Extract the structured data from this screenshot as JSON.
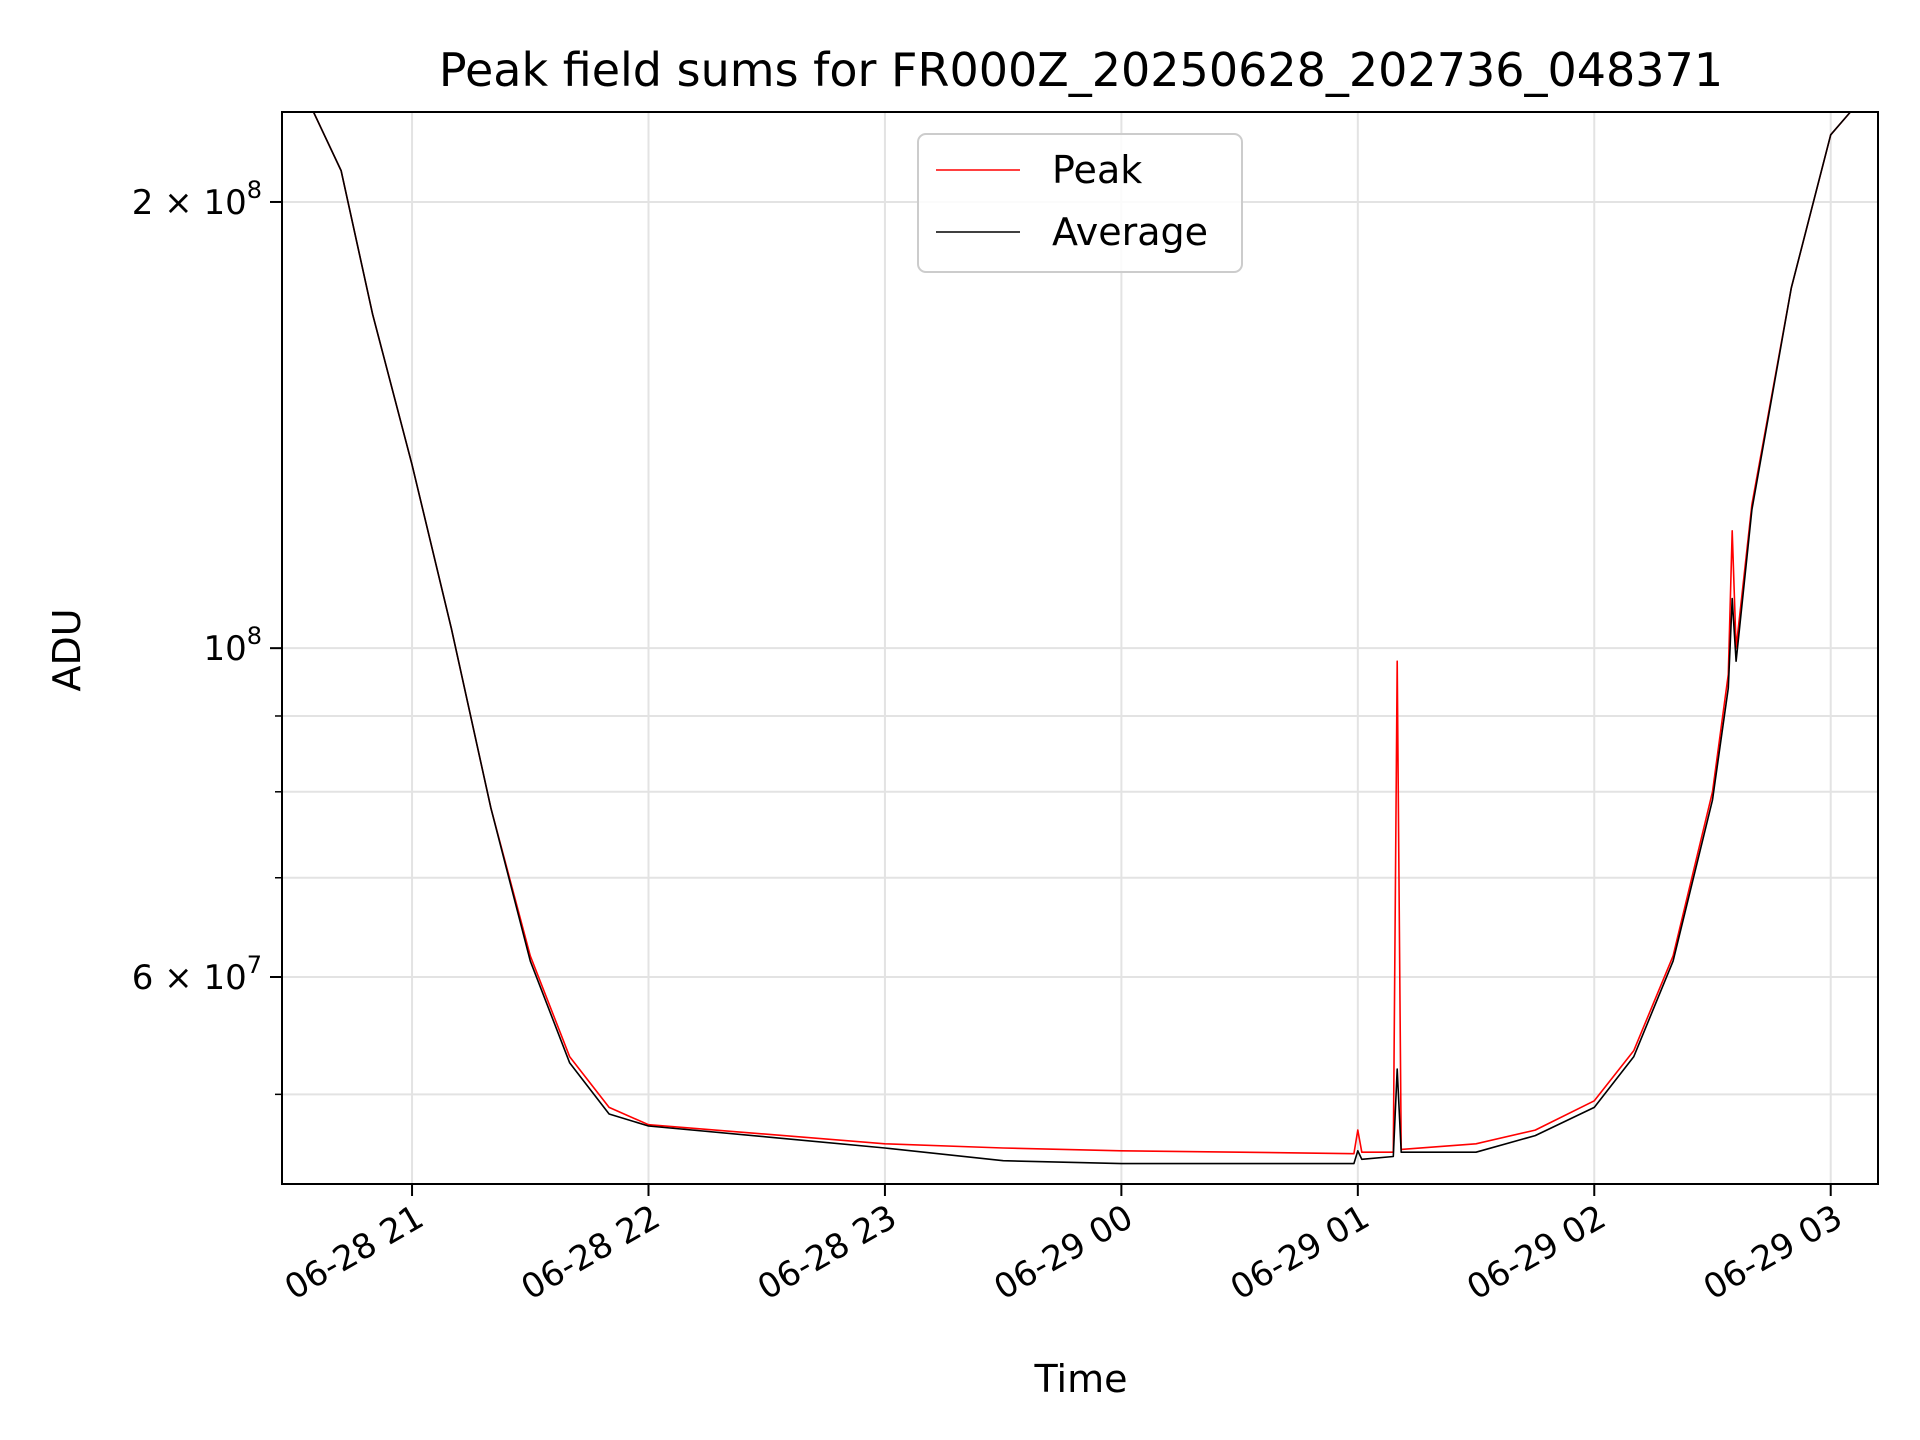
{
  "chart_data": {
    "type": "line",
    "title": "Peak field sums for FR000Z_20250628_202736_048371",
    "xlabel": "Time",
    "ylabel": "ADU",
    "yscale": "log",
    "ylim": [
      43500000,
      230000000
    ],
    "xlim": [
      "2025-06-28 20:27",
      "2025-06-29 03:12"
    ],
    "grid": true,
    "legend_position": "upper center",
    "x_ticks": [
      "06-28 21",
      "06-28 22",
      "06-28 23",
      "06-29 00",
      "06-29 01",
      "06-29 02",
      "06-29 03"
    ],
    "y_major_ticks": [
      {
        "value": 60000000,
        "label_base": "6 × 10",
        "label_exp": "7"
      },
      {
        "value": 100000000,
        "label_base": "10",
        "label_exp": "8"
      },
      {
        "value": 200000000,
        "label_base": "2 × 10",
        "label_exp": "8"
      }
    ],
    "y_minor_ticks": [
      50000000,
      70000000,
      80000000,
      90000000
    ],
    "series": [
      {
        "name": "Peak",
        "color": "#ff0000",
        "points": [
          [
            "2025-06-28 20:27",
            230000000
          ],
          [
            "2025-06-28 20:35",
            230000000
          ],
          [
            "2025-06-28 20:42",
            210000000
          ],
          [
            "2025-06-28 20:50",
            168000000
          ],
          [
            "2025-06-28 21:00",
            133000000
          ],
          [
            "2025-06-28 21:10",
            103000000
          ],
          [
            "2025-06-28 21:20",
            78000000
          ],
          [
            "2025-06-28 21:30",
            62000000
          ],
          [
            "2025-06-28 21:40",
            53000000
          ],
          [
            "2025-06-28 21:50",
            49000000
          ],
          [
            "2025-06-28 22:00",
            47700000
          ],
          [
            "2025-06-28 22:30",
            47000000
          ],
          [
            "2025-06-28 23:00",
            46300000
          ],
          [
            "2025-06-28 23:30",
            46000000
          ],
          [
            "2025-06-29 00:00",
            45800000
          ],
          [
            "2025-06-29 00:30",
            45700000
          ],
          [
            "2025-06-29 00:59",
            45600000
          ],
          [
            "2025-06-29 01:00",
            47300000
          ],
          [
            "2025-06-29 01:01",
            45700000
          ],
          [
            "2025-06-29 01:09",
            45700000
          ],
          [
            "2025-06-29 01:10",
            98000000
          ],
          [
            "2025-06-29 01:11",
            45900000
          ],
          [
            "2025-06-29 01:30",
            46300000
          ],
          [
            "2025-06-29 01:45",
            47300000
          ],
          [
            "2025-06-29 02:00",
            49500000
          ],
          [
            "2025-06-29 02:10",
            53500000
          ],
          [
            "2025-06-29 02:20",
            62000000
          ],
          [
            "2025-06-29 02:30",
            80000000
          ],
          [
            "2025-06-29 02:34",
            96000000
          ],
          [
            "2025-06-29 02:35",
            120000000
          ],
          [
            "2025-06-29 02:36",
            100000000
          ],
          [
            "2025-06-29 02:40",
            125000000
          ],
          [
            "2025-06-29 02:50",
            175000000
          ],
          [
            "2025-06-29 03:00",
            222000000
          ],
          [
            "2025-06-29 03:05",
            230000000
          ],
          [
            "2025-06-29 03:12",
            230000000
          ]
        ]
      },
      {
        "name": "Average",
        "color": "#000000",
        "points": [
          [
            "2025-06-28 20:27",
            230000000
          ],
          [
            "2025-06-28 20:35",
            230000000
          ],
          [
            "2025-06-28 20:42",
            210000000
          ],
          [
            "2025-06-28 20:50",
            168000000
          ],
          [
            "2025-06-28 21:00",
            133000000
          ],
          [
            "2025-06-28 21:10",
            103000000
          ],
          [
            "2025-06-28 21:20",
            78000000
          ],
          [
            "2025-06-28 21:30",
            61500000
          ],
          [
            "2025-06-28 21:40",
            52500000
          ],
          [
            "2025-06-28 21:50",
            48500000
          ],
          [
            "2025-06-28 22:00",
            47600000
          ],
          [
            "2025-06-28 22:30",
            46800000
          ],
          [
            "2025-06-28 23:00",
            46000000
          ],
          [
            "2025-06-28 23:30",
            45100000
          ],
          [
            "2025-06-29 00:00",
            44900000
          ],
          [
            "2025-06-29 00:30",
            44900000
          ],
          [
            "2025-06-29 00:59",
            44900000
          ],
          [
            "2025-06-29 01:00",
            45800000
          ],
          [
            "2025-06-29 01:01",
            45200000
          ],
          [
            "2025-06-29 01:09",
            45400000
          ],
          [
            "2025-06-29 01:10",
            52000000
          ],
          [
            "2025-06-29 01:11",
            45700000
          ],
          [
            "2025-06-29 01:30",
            45700000
          ],
          [
            "2025-06-29 01:45",
            46900000
          ],
          [
            "2025-06-29 02:00",
            49000000
          ],
          [
            "2025-06-29 02:10",
            53000000
          ],
          [
            "2025-06-29 02:20",
            61500000
          ],
          [
            "2025-06-29 02:30",
            79000000
          ],
          [
            "2025-06-29 02:34",
            94000000
          ],
          [
            "2025-06-29 02:35",
            108000000
          ],
          [
            "2025-06-29 02:36",
            98000000
          ],
          [
            "2025-06-29 02:40",
            124000000
          ],
          [
            "2025-06-29 02:50",
            175000000
          ],
          [
            "2025-06-29 03:00",
            222000000
          ],
          [
            "2025-06-29 03:05",
            230000000
          ],
          [
            "2025-06-29 03:12",
            230000000
          ]
        ]
      }
    ]
  }
}
